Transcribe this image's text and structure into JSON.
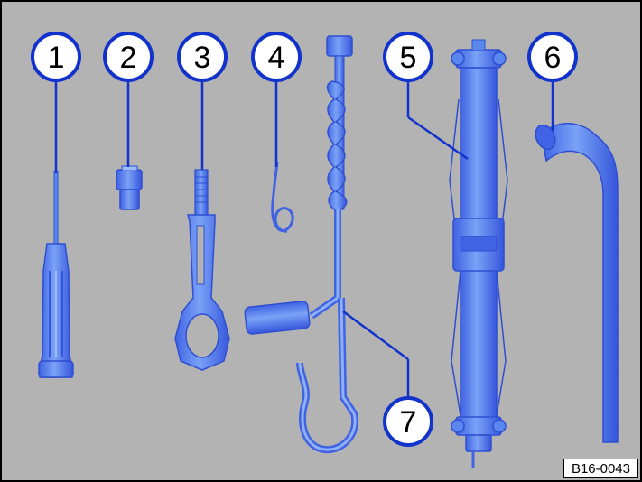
{
  "figure": {
    "code": "B16-0043"
  },
  "callouts": [
    "1",
    "2",
    "3",
    "4",
    "5",
    "6",
    "7"
  ],
  "colors": {
    "background": "#b3b3b3",
    "tool_fill": "#5a87ee",
    "tool_edge": "#2f4fd2",
    "callout_border": "#1133cc",
    "callout_fill": "#ffffff"
  },
  "tools": [
    {
      "callout": "1",
      "name": "screwdriver"
    },
    {
      "callout": "2",
      "name": "adapter"
    },
    {
      "callout": "3",
      "name": "towing-eye"
    },
    {
      "callout": "4",
      "name": "spring-clip"
    },
    {
      "callout": "5",
      "name": "jack"
    },
    {
      "callout": "6",
      "name": "wheel-brace"
    },
    {
      "callout": "7",
      "name": "crank-handle"
    }
  ]
}
